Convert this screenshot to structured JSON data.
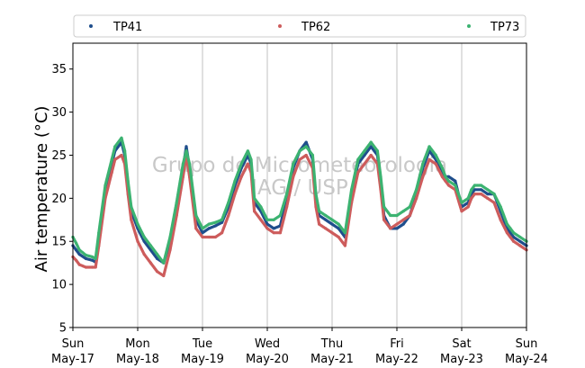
{
  "chart_data": {
    "type": "scatter",
    "ylabel": "Air temperature (°C)",
    "ylim": [
      5,
      38
    ],
    "yticks": [
      5,
      10,
      15,
      20,
      25,
      30,
      35
    ],
    "x_range": [
      "2020-05-17",
      "2020-05-24"
    ],
    "xticks": [
      {
        "day": "Sun",
        "date": "May-17"
      },
      {
        "day": "Mon",
        "date": "May-18"
      },
      {
        "day": "Tue",
        "date": "May-19"
      },
      {
        "day": "Wed",
        "date": "May-20"
      },
      {
        "day": "Thu",
        "date": "May-21"
      },
      {
        "day": "Fri",
        "date": "May-22"
      },
      {
        "day": "Sat",
        "date": "May-23"
      },
      {
        "day": "Sun",
        "date": "May-24"
      }
    ],
    "grid": "vertical",
    "legend_position": "top",
    "watermark": [
      "Grupo de Micrometeorologia",
      "IAG / USP"
    ],
    "x_unit": "day since May-17 00:00",
    "series": [
      {
        "name": "TP41",
        "color": "#1f4e8c",
        "x": [
          0,
          0.05,
          0.1,
          0.2,
          0.3,
          0.35,
          0.4,
          0.5,
          0.6,
          0.65,
          0.75,
          0.8,
          0.85,
          0.9,
          1.0,
          1.1,
          1.2,
          1.3,
          1.4,
          1.5,
          1.6,
          1.7,
          1.75,
          1.8,
          1.9,
          2.0,
          2.1,
          2.2,
          2.3,
          2.4,
          2.5,
          2.6,
          2.7,
          2.75,
          2.8,
          2.9,
          3.0,
          3.1,
          3.2,
          3.3,
          3.4,
          3.5,
          3.6,
          3.7,
          3.75,
          3.8,
          3.9,
          4.0,
          4.1,
          4.2,
          4.3,
          4.4,
          4.5,
          4.6,
          4.7,
          4.75,
          4.8,
          4.9,
          5.0,
          5.1,
          5.2,
          5.3,
          5.4,
          5.5,
          5.6,
          5.7,
          5.75,
          5.8,
          5.9,
          6.0,
          6.1,
          6.15,
          6.2,
          6.3,
          6.4,
          6.5,
          6.6,
          6.7,
          6.75,
          6.8,
          6.9,
          7.0
        ],
        "y": [
          14.5,
          14.0,
          13.5,
          13.0,
          12.8,
          12.6,
          15.5,
          21.0,
          24.0,
          25.5,
          26.5,
          25.0,
          21.5,
          18.5,
          16.5,
          15.0,
          14.0,
          13.0,
          12.5,
          15.0,
          19.0,
          23.5,
          26.0,
          23.5,
          17.5,
          16.0,
          16.5,
          16.8,
          17.2,
          19.0,
          21.5,
          23.5,
          25.0,
          24.0,
          19.5,
          18.5,
          17.0,
          16.5,
          16.8,
          20.0,
          23.5,
          25.5,
          26.5,
          24.5,
          20.0,
          18.0,
          17.5,
          17.0,
          16.5,
          15.5,
          20.5,
          24.0,
          25.0,
          26.0,
          25.0,
          22.0,
          18.0,
          16.5,
          16.5,
          17.0,
          18.0,
          20.5,
          23.5,
          25.5,
          24.5,
          23.0,
          22.5,
          22.5,
          22.0,
          19.0,
          19.5,
          20.5,
          21.0,
          21.0,
          20.5,
          20.5,
          18.5,
          16.5,
          16.0,
          15.5,
          15.0,
          14.5
        ]
      },
      {
        "name": "TP62",
        "color": "#cd5c5c",
        "x": [
          0,
          0.05,
          0.1,
          0.2,
          0.3,
          0.35,
          0.4,
          0.5,
          0.6,
          0.65,
          0.75,
          0.8,
          0.85,
          0.9,
          1.0,
          1.1,
          1.2,
          1.3,
          1.4,
          1.5,
          1.6,
          1.7,
          1.75,
          1.8,
          1.9,
          2.0,
          2.1,
          2.2,
          2.3,
          2.4,
          2.5,
          2.6,
          2.7,
          2.75,
          2.8,
          2.9,
          3.0,
          3.1,
          3.2,
          3.3,
          3.4,
          3.5,
          3.6,
          3.7,
          3.75,
          3.8,
          3.9,
          4.0,
          4.1,
          4.2,
          4.3,
          4.4,
          4.5,
          4.6,
          4.7,
          4.75,
          4.8,
          4.9,
          5.0,
          5.1,
          5.2,
          5.3,
          5.4,
          5.5,
          5.6,
          5.7,
          5.75,
          5.8,
          5.9,
          6.0,
          6.1,
          6.15,
          6.2,
          6.3,
          6.4,
          6.5,
          6.6,
          6.7,
          6.75,
          6.8,
          6.9,
          7.0
        ],
        "y": [
          13.2,
          12.8,
          12.3,
          12.0,
          12.0,
          12.0,
          14.5,
          20.0,
          23.0,
          24.5,
          25.0,
          24.0,
          20.5,
          17.5,
          15.0,
          13.5,
          12.5,
          11.5,
          11.0,
          14.0,
          18.0,
          22.5,
          25.0,
          22.5,
          16.5,
          15.5,
          15.5,
          15.5,
          16.0,
          18.0,
          20.5,
          22.5,
          24.0,
          23.0,
          18.5,
          17.5,
          16.5,
          16.0,
          16.0,
          19.0,
          22.5,
          24.5,
          25.0,
          23.5,
          19.0,
          17.0,
          16.5,
          16.0,
          15.5,
          14.5,
          19.5,
          23.0,
          24.0,
          25.0,
          24.0,
          21.0,
          17.5,
          16.5,
          17.0,
          17.5,
          18.0,
          20.0,
          22.5,
          24.5,
          24.0,
          22.5,
          22.0,
          21.5,
          21.0,
          18.5,
          19.0,
          20.0,
          20.5,
          20.5,
          20.0,
          19.5,
          17.5,
          16.0,
          15.5,
          15.0,
          14.5,
          14.0
        ]
      },
      {
        "name": "TP73",
        "color": "#3cb371",
        "x": [
          0,
          0.05,
          0.1,
          0.2,
          0.3,
          0.35,
          0.4,
          0.5,
          0.6,
          0.65,
          0.75,
          0.8,
          0.85,
          0.9,
          1.0,
          1.1,
          1.2,
          1.3,
          1.4,
          1.5,
          1.6,
          1.7,
          1.75,
          1.8,
          1.9,
          2.0,
          2.1,
          2.2,
          2.3,
          2.4,
          2.5,
          2.6,
          2.7,
          2.75,
          2.8,
          2.9,
          3.0,
          3.1,
          3.2,
          3.3,
          3.4,
          3.5,
          3.6,
          3.7,
          3.75,
          3.8,
          3.9,
          4.0,
          4.1,
          4.2,
          4.3,
          4.4,
          4.5,
          4.6,
          4.7,
          4.75,
          4.8,
          4.9,
          5.0,
          5.1,
          5.2,
          5.3,
          5.4,
          5.5,
          5.6,
          5.7,
          5.75,
          5.8,
          5.9,
          6.0,
          6.1,
          6.15,
          6.2,
          6.3,
          6.4,
          6.5,
          6.6,
          6.7,
          6.75,
          6.8,
          6.9,
          7.0
        ],
        "y": [
          15.5,
          14.8,
          14.0,
          13.4,
          13.2,
          13.0,
          16.0,
          21.5,
          24.5,
          26.0,
          27.0,
          25.5,
          22.0,
          19.0,
          17.0,
          15.5,
          14.5,
          13.5,
          12.5,
          15.5,
          19.5,
          24.0,
          25.5,
          24.0,
          18.0,
          16.5,
          17.0,
          17.2,
          17.5,
          19.5,
          22.0,
          24.0,
          25.5,
          24.5,
          20.0,
          19.0,
          17.5,
          17.5,
          18.0,
          20.5,
          24.0,
          25.5,
          26.0,
          25.0,
          20.5,
          18.5,
          18.0,
          17.5,
          17.0,
          16.0,
          21.0,
          24.5,
          25.5,
          26.5,
          25.5,
          22.5,
          19.0,
          18.0,
          18.0,
          18.5,
          19.0,
          21.0,
          24.0,
          26.0,
          25.0,
          23.5,
          22.5,
          22.0,
          21.5,
          19.5,
          20.0,
          21.0,
          21.5,
          21.5,
          21.0,
          20.5,
          19.0,
          17.0,
          16.5,
          16.0,
          15.5,
          15.0
        ]
      }
    ]
  }
}
